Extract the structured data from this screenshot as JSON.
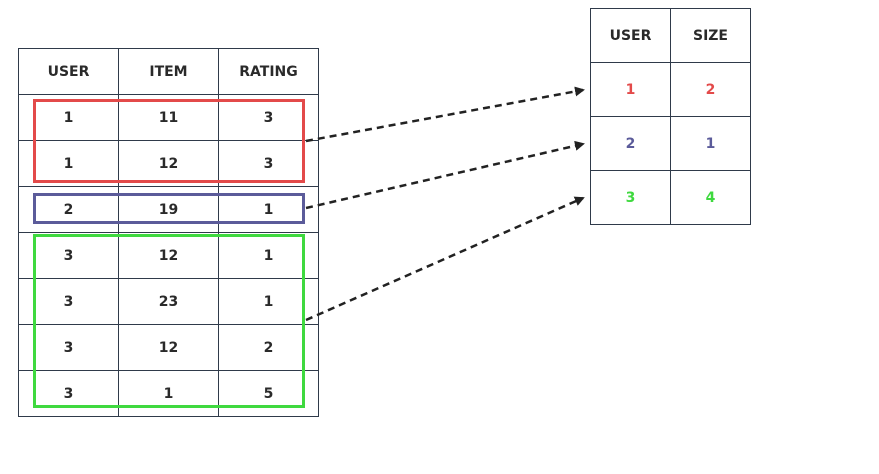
{
  "colors": {
    "red": "#e34a4a",
    "blue": "#5b5b9a",
    "green": "#3fd93f",
    "border": "#2f3a4a",
    "arrow": "#222222"
  },
  "ratings_table": {
    "headers": [
      "USER",
      "ITEM",
      "RATING"
    ],
    "rows": [
      [
        "1",
        "11",
        "3"
      ],
      [
        "1",
        "12",
        "3"
      ],
      [
        "2",
        "19",
        "1"
      ],
      [
        "3",
        "12",
        "1"
      ],
      [
        "3",
        "23",
        "1"
      ],
      [
        "3",
        "12",
        "2"
      ],
      [
        "3",
        "1",
        "5"
      ]
    ]
  },
  "size_table": {
    "headers": [
      "USER",
      "SIZE"
    ],
    "rows": [
      [
        "1",
        "2"
      ],
      [
        "2",
        "1"
      ],
      [
        "3",
        "4"
      ]
    ]
  }
}
